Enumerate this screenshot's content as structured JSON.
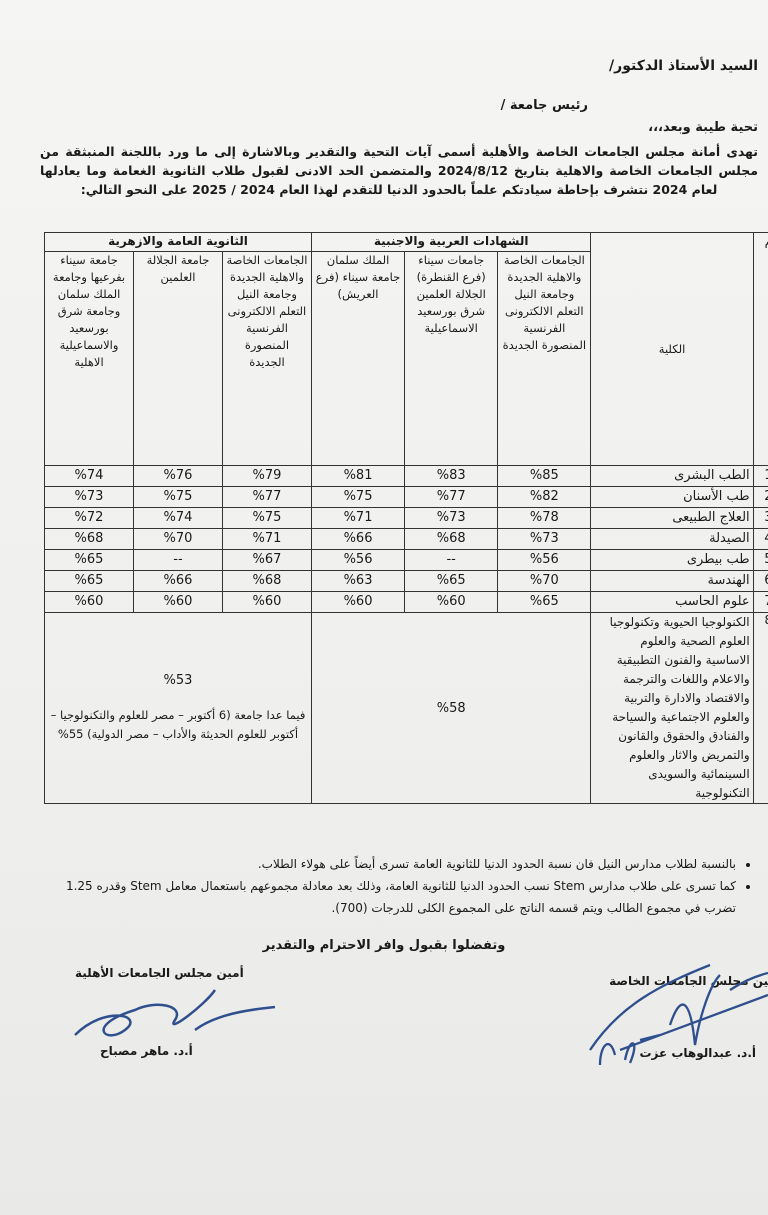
{
  "header": {
    "salutation": "السيد الأستاذ الدكتور/",
    "president": "رئيس جامعة /",
    "greeting": "تحية طيبة وبعد،،،",
    "intro": "تهدى أمانة مجلس الجامعات الخاصة والأهلية أسمى آيات التحية والتقدير وبالاشارة إلى ما ورد باللجنة المنبثقة من مجلس الجامعات الخاصة والاهلية بتاريخ 2024/8/12 والمتضمن الحد الادنى لقبول طلاب الثانوية الغعامة وما يعادلها لعام 2024 نتشرف بإحاطة سيادتكم علماً بالحدود الدنيا للتقدم لهذا العام 2024 / 2025 على النحو التالي:"
  },
  "table": {
    "col_num": "م",
    "col_faculty": "الكلية",
    "group_arab_foreign": "الشهادات العربية والاجنبية",
    "group_general_azhar": "الثانوية العامة والازهرية",
    "subheaders": [
      "الجامعات الخاصة والاهلية الجديدة وجامعة النيل التعلم الالكترونى الفرنسية المنصورة الجديدة",
      "جامعات سيناء (فرع القنطرة) الجلالة العلمين شرق بورسعيد الاسماعيلية",
      "الملك سلمان جامعة سيناء (فرع العريش)",
      "الجامعات الخاصة والاهلية الجديدة وجامعة النيل التعلم الالكترونى الفرنسية المنصورة الجديدة",
      "جامعة الجلالة العلمين",
      "جامعة سيناء بفرعيها وجامعة الملك سلمان وجامعة شرق بورسعيد والاسماعيلية الاهلية"
    ],
    "rows": [
      {
        "num": "1",
        "faculty": "الطب البشرى",
        "values": [
          "%85",
          "%83",
          "%81",
          "%79",
          "%76",
          "%74"
        ]
      },
      {
        "num": "2",
        "faculty": "طب الأسنان",
        "values": [
          "%82",
          "%77",
          "%75",
          "%77",
          "%75",
          "%73"
        ]
      },
      {
        "num": "3",
        "faculty": "العلاج الطبيعى",
        "values": [
          "%78",
          "%73",
          "%71",
          "%75",
          "%74",
          "%72"
        ]
      },
      {
        "num": "4",
        "faculty": "الصيدلة",
        "values": [
          "%73",
          "%68",
          "%66",
          "%71",
          "%70",
          "%68"
        ]
      },
      {
        "num": "5",
        "faculty": "طب بيطرى",
        "values": [
          "%56",
          "--",
          "%56",
          "%67",
          "--",
          "%65"
        ]
      },
      {
        "num": "6",
        "faculty": "الهندسة",
        "values": [
          "%70",
          "%65",
          "%63",
          "%68",
          "%66",
          "%65"
        ]
      },
      {
        "num": "7",
        "faculty": "علوم الحاسب",
        "values": [
          "%65",
          "%60",
          "%60",
          "%60",
          "%60",
          "%60"
        ]
      }
    ],
    "row8": {
      "num": "8",
      "faculty": "الكنولوجيا الحيوية وتكنولوجيا العلوم الصحية والعلوم الاساسية والفنون التطبيقية والاعلام واللغات والترجمة والاقتصاد والادارة والتربية والعلوم الاجتماعية والسياحة والفنادق والحقوق والقانون والتمريض والاثار والعلوم السينمائية والسويدى التكنولوجية",
      "arab_foreign": "%58",
      "general": "%53",
      "general_note": "فيما عدا جامعة (6 أكتوبر – مصر للعلوم والتكنولوجيا – أكتوبر للعلوم الحديثة والأداب – مصر الدولية) 55%"
    }
  },
  "notes": [
    "بالنسبة لطلاب مدارس النيل فان نسبة الحدود الدنيا للثانوية العامة تسرى أيضاً على هولاء الطلاب.",
    "كما تسرى على طلاب مدارس Stem نسب الحدود الدنيا للثانوية العامة، وذلك بعد معادلة مجموعهم باستعمال معامل Stem وقدره 1.25 تضرب في مجموع الطالب ويتم قسمه الناتج على المجموع الكلى للدرجات (700)."
  ],
  "closing": "وتفضلوا بقبول وافر الاحترام والتقدير",
  "signatures": {
    "left_title": "أمين مجلس الجامعات الأهلية",
    "left_name": "أ.د. ماهر مصباح",
    "right_title": "أمين مجلس الجامعات الخاصة",
    "right_name": "أ.د. عبدالوهاب عزت"
  },
  "colors": {
    "ink": "#1a1a1a",
    "signature_ink": "#2f4f8f"
  }
}
